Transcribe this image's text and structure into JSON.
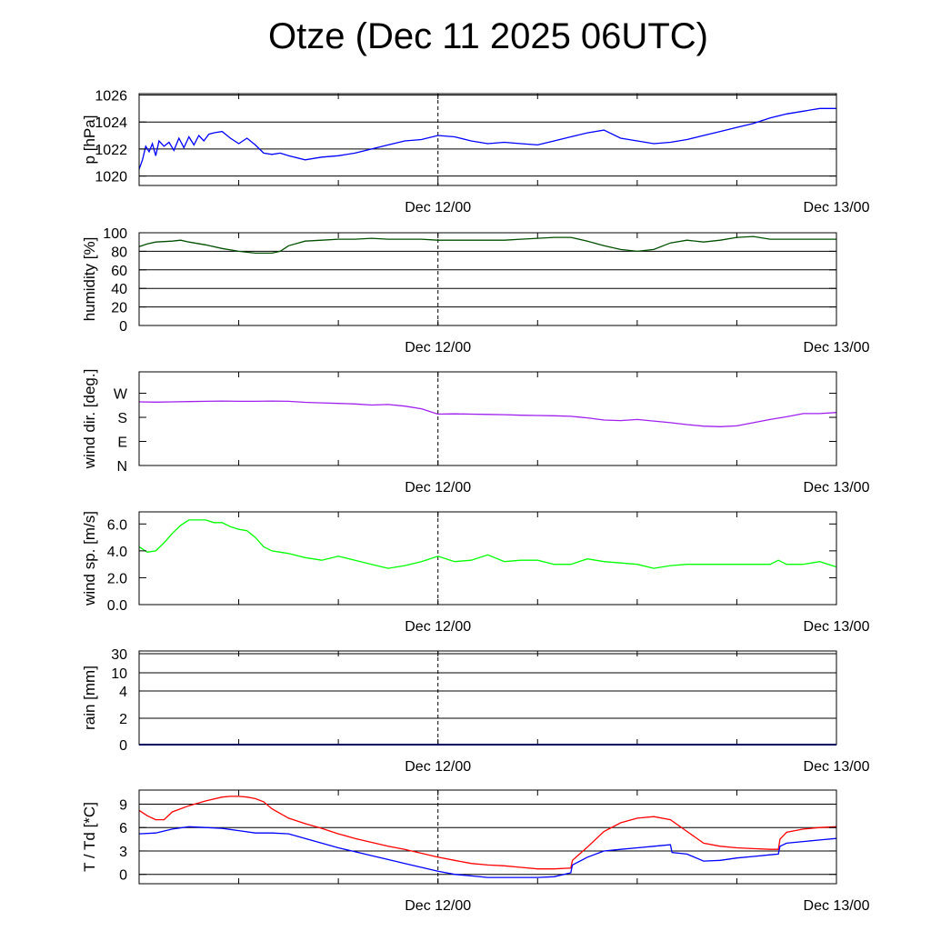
{
  "title": "Otze (Dec 11 2025 06UTC)",
  "chart_data": [
    {
      "id": "pressure",
      "type": "line",
      "ylabel": "p [hPa]",
      "x_range": [
        0,
        42
      ],
      "x_ticks": [
        "Dec 12/00",
        "Dec 13/00"
      ],
      "ylim": [
        1019.3,
        1026.1
      ],
      "y_ticks": [
        1020,
        1022,
        1024,
        1026
      ],
      "grid": true,
      "series": [
        {
          "color": "#0000ff",
          "x": [
            0,
            0.2,
            0.4,
            0.6,
            0.8,
            1.0,
            1.2,
            1.5,
            1.8,
            2.1,
            2.4,
            2.7,
            3.0,
            3.3,
            3.6,
            3.9,
            4.2,
            4.5,
            5.0,
            5.5,
            6.0,
            6.5,
            7.0,
            7.5,
            8.0,
            8.5,
            9.0,
            10.0,
            11.0,
            12.0,
            13.0,
            14.0,
            15.0,
            16.0,
            17.0,
            18.0,
            19.0,
            20.0,
            21.0,
            22.0,
            23.0,
            24.0,
            25.0,
            26.0,
            27.0,
            28.0,
            29.0,
            30.0,
            31.0,
            32.0,
            33.0,
            34.0,
            35.0,
            36.0,
            37.0,
            38.0,
            39.0,
            40.0,
            41.0,
            42.0
          ],
          "y": [
            1020.5,
            1021.2,
            1022.2,
            1021.8,
            1022.4,
            1021.5,
            1022.6,
            1022.2,
            1022.5,
            1021.9,
            1022.8,
            1022.1,
            1022.9,
            1022.3,
            1023.0,
            1022.6,
            1023.1,
            1023.2,
            1023.3,
            1022.8,
            1022.4,
            1022.8,
            1022.3,
            1021.7,
            1021.6,
            1021.7,
            1021.5,
            1021.2,
            1021.4,
            1021.5,
            1021.7,
            1022.0,
            1022.3,
            1022.6,
            1022.7,
            1023.0,
            1022.9,
            1022.6,
            1022.4,
            1022.5,
            1022.4,
            1022.3,
            1022.6,
            1022.9,
            1023.2,
            1023.4,
            1022.8,
            1022.6,
            1022.4,
            1022.5,
            1022.7,
            1023.0,
            1023.3,
            1023.6,
            1023.9,
            1024.3,
            1024.6,
            1024.8,
            1025.0,
            1025.0
          ]
        }
      ]
    },
    {
      "id": "humidity",
      "type": "line",
      "ylabel": "humidity [%]",
      "x_range": [
        0,
        42
      ],
      "x_ticks": [
        "Dec 12/00",
        "Dec 13/00"
      ],
      "ylim": [
        0,
        100
      ],
      "y_ticks": [
        0,
        20,
        40,
        60,
        80,
        100
      ],
      "grid": true,
      "series": [
        {
          "color": "#005000",
          "x": [
            0,
            0.5,
            1.0,
            2.0,
            2.5,
            3.0,
            4.0,
            5.0,
            6.0,
            7.0,
            8.0,
            8.5,
            9.0,
            10.0,
            11.0,
            12.0,
            13.0,
            14.0,
            15.0,
            16.0,
            17.0,
            18.0,
            19.0,
            20.0,
            21.0,
            22.0,
            23.0,
            24.0,
            25.0,
            26.0,
            27.0,
            28.0,
            29.0,
            30.0,
            31.0,
            32.0,
            33.0,
            34.0,
            35.0,
            36.0,
            37.0,
            38.0,
            39.0,
            40.0,
            41.0,
            42.0
          ],
          "y": [
            85,
            88,
            90,
            91,
            92,
            90,
            87,
            83,
            80,
            78,
            78,
            80,
            86,
            91,
            92,
            93,
            93,
            94,
            93,
            93,
            93,
            92,
            92,
            92,
            92,
            92,
            93,
            94,
            95,
            95,
            91,
            86,
            82,
            80,
            82,
            89,
            92,
            90,
            92,
            95,
            96,
            93,
            93,
            93,
            93,
            93
          ]
        }
      ]
    },
    {
      "id": "wind-direction",
      "type": "line",
      "ylabel": "wind dir. [deg.]",
      "x_range": [
        0,
        42
      ],
      "x_ticks": [
        "Dec 12/00",
        "Dec 13/00"
      ],
      "ylim": [
        0,
        350
      ],
      "y_ticks": [
        0,
        90,
        180,
        270
      ],
      "y_tick_labels": [
        "N",
        "E",
        "S",
        "W"
      ],
      "grid": false,
      "series": [
        {
          "color": "#a020f0",
          "x": [
            0,
            1,
            2,
            3,
            4,
            5,
            6,
            7,
            8,
            9,
            10,
            11,
            12,
            13,
            14,
            15,
            16,
            17,
            18,
            19,
            20,
            21,
            22,
            23,
            24,
            25,
            26,
            27,
            28,
            29,
            30,
            31,
            32,
            33,
            34,
            35,
            36,
            37,
            38,
            39,
            40,
            41,
            42
          ],
          "y": [
            238,
            237,
            238,
            239,
            240,
            241,
            240,
            240,
            241,
            240,
            236,
            234,
            232,
            230,
            226,
            228,
            222,
            212,
            192,
            193,
            192,
            191,
            190,
            188,
            187,
            186,
            184,
            178,
            170,
            168,
            172,
            166,
            160,
            153,
            147,
            145,
            148,
            160,
            172,
            182,
            194,
            194,
            198
          ]
        }
      ]
    },
    {
      "id": "wind-speed",
      "type": "line",
      "ylabel": "wind sp. [m/s]",
      "x_range": [
        0,
        42
      ],
      "x_ticks": [
        "Dec 12/00",
        "Dec 13/00"
      ],
      "ylim": [
        0,
        6.9
      ],
      "y_ticks": [
        0.0,
        2.0,
        4.0,
        6.0
      ],
      "y_tick_labels": [
        "0.0",
        "2.0",
        "4.0",
        "6.0"
      ],
      "grid": false,
      "series": [
        {
          "color": "#00ff00",
          "x": [
            0,
            0.5,
            1.0,
            1.5,
            2.0,
            2.5,
            3.0,
            3.5,
            4.0,
            4.5,
            5.0,
            5.5,
            6.0,
            6.5,
            7.0,
            7.5,
            8.0,
            8.5,
            9.0,
            10.0,
            11.0,
            12.0,
            13.0,
            14.0,
            15.0,
            16.0,
            17.0,
            18.0,
            19.0,
            20.0,
            21.0,
            22.0,
            23.0,
            24.0,
            25.0,
            26.0,
            27.0,
            28.0,
            29.0,
            30.0,
            31.0,
            32.0,
            33.0,
            34.0,
            35.0,
            36.0,
            37.0,
            38.0,
            38.5,
            39.0,
            40.0,
            41.0,
            42.0
          ],
          "y": [
            4.3,
            3.9,
            4.0,
            4.6,
            5.3,
            5.9,
            6.3,
            6.3,
            6.3,
            6.1,
            6.1,
            5.8,
            5.6,
            5.5,
            5.0,
            4.3,
            4.0,
            3.9,
            3.8,
            3.5,
            3.3,
            3.6,
            3.3,
            3.0,
            2.7,
            2.9,
            3.2,
            3.6,
            3.2,
            3.3,
            3.7,
            3.2,
            3.3,
            3.3,
            3.0,
            3.0,
            3.4,
            3.2,
            3.1,
            3.0,
            2.7,
            2.9,
            3.0,
            3.0,
            3.0,
            3.0,
            3.0,
            3.0,
            3.3,
            3.0,
            3.0,
            3.2,
            2.8
          ]
        }
      ]
    },
    {
      "id": "rain",
      "type": "line",
      "ylabel": "rain [mm]",
      "x_range": [
        0,
        42
      ],
      "x_ticks": [
        "Dec 12/00",
        "Dec 13/00"
      ],
      "y_ticks": [
        0,
        2,
        4,
        10,
        30
      ],
      "y_tick_labels": [
        "0",
        "2",
        "4",
        "10",
        "30"
      ],
      "grid": true,
      "series": [
        {
          "color": "#0000c0",
          "x": [
            0,
            42
          ],
          "y": [
            0,
            0
          ]
        }
      ]
    },
    {
      "id": "temperature",
      "type": "line",
      "ylabel": "T / Td [*C]",
      "x_range": [
        0,
        42
      ],
      "x_ticks": [
        "Dec 12/00",
        "Dec 13/00"
      ],
      "ylim": [
        -1.2,
        10.8
      ],
      "y_ticks": [
        0,
        3,
        6,
        9
      ],
      "grid": true,
      "series": [
        {
          "color": "#ff0000",
          "x": [
            0,
            0.5,
            1.0,
            1.5,
            2.0,
            3.0,
            4.0,
            5.0,
            5.5,
            6.0,
            6.5,
            7.0,
            7.5,
            8.0,
            9.0,
            10.0,
            11.0,
            12.0,
            13.0,
            14.0,
            15.0,
            16.0,
            17.0,
            18.0,
            19.0,
            20.0,
            21.0,
            22.0,
            23.0,
            24.0,
            25.0,
            26.0,
            26.1,
            27.0,
            28.0,
            29.0,
            30.0,
            31.0,
            32.0,
            33.0,
            34.0,
            35.0,
            36.0,
            37.0,
            38.0,
            38.5,
            38.6,
            39.0,
            40.0,
            41.0,
            42.0
          ],
          "y": [
            8.2,
            7.5,
            7.0,
            7.0,
            8.0,
            8.8,
            9.4,
            9.9,
            10.0,
            10.0,
            9.9,
            9.7,
            9.3,
            8.4,
            7.2,
            6.5,
            5.9,
            5.2,
            4.6,
            4.1,
            3.6,
            3.2,
            2.7,
            2.2,
            1.8,
            1.4,
            1.2,
            1.1,
            0.9,
            0.7,
            0.7,
            0.8,
            1.8,
            3.5,
            5.5,
            6.6,
            7.2,
            7.4,
            7.0,
            5.5,
            4.0,
            3.6,
            3.4,
            3.3,
            3.2,
            3.2,
            4.5,
            5.4,
            5.8,
            6.0,
            6.1
          ]
        },
        {
          "color": "#0000ff",
          "x": [
            0,
            1.0,
            2.0,
            3.0,
            4.0,
            5.0,
            6.0,
            7.0,
            8.0,
            9.0,
            10.0,
            11.0,
            12.0,
            13.0,
            14.0,
            15.0,
            16.0,
            17.0,
            18.0,
            19.0,
            20.0,
            21.0,
            22.0,
            23.0,
            24.0,
            25.0,
            26.0,
            26.1,
            27.0,
            28.0,
            29.0,
            30.0,
            31.0,
            32.0,
            32.1,
            33.0,
            34.0,
            35.0,
            36.0,
            37.0,
            38.0,
            38.5,
            38.6,
            39.0,
            40.0,
            41.0,
            42.0
          ],
          "y": [
            5.2,
            5.3,
            5.8,
            6.1,
            6.0,
            5.9,
            5.6,
            5.3,
            5.3,
            5.2,
            4.6,
            4.0,
            3.4,
            2.9,
            2.4,
            1.9,
            1.4,
            0.9,
            0.4,
            0.0,
            -0.2,
            -0.4,
            -0.4,
            -0.4,
            -0.4,
            -0.3,
            0.2,
            1.2,
            2.2,
            3.0,
            3.2,
            3.4,
            3.6,
            3.8,
            2.8,
            2.6,
            1.7,
            1.8,
            2.1,
            2.3,
            2.5,
            2.6,
            3.6,
            4.0,
            4.2,
            4.4,
            4.6
          ]
        }
      ]
    }
  ]
}
